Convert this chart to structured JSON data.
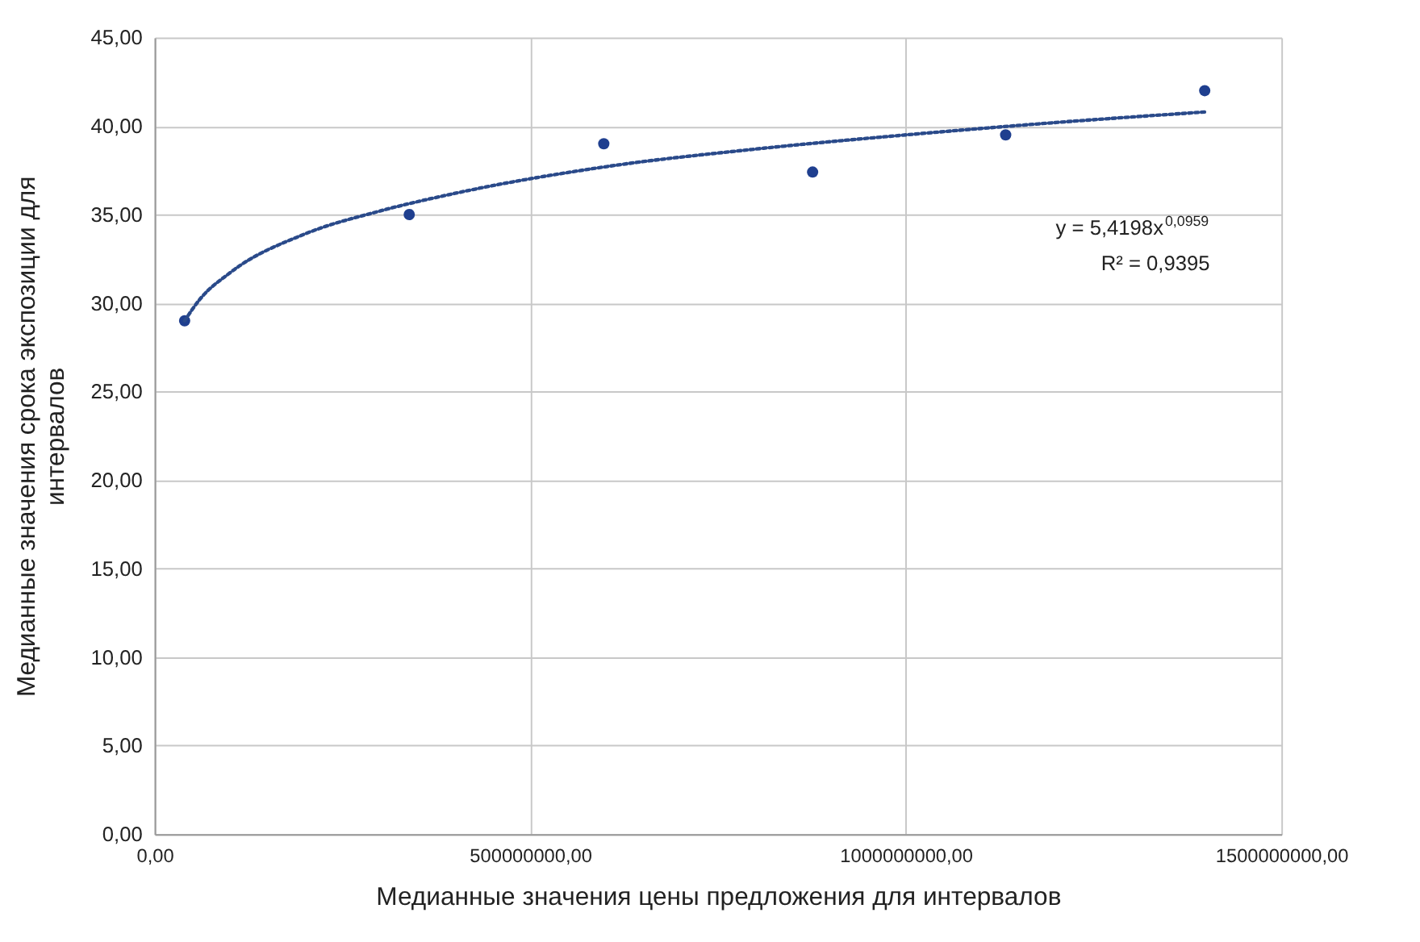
{
  "chart_data": {
    "type": "scatter",
    "xlabel": "Медианные значения цены предложения для интервалов",
    "ylabel": "Медианные значения срока экспозиции для интервалов",
    "series": [
      {
        "color": "#1f3f8f",
        "marker": "circle",
        "x": [
          40000000,
          339000000,
          598000000,
          876000000,
          1133000000,
          1398000000
        ],
        "values": [
          29.0,
          35.0,
          39.0,
          37.4,
          39.5,
          42.0
        ]
      },
      {
        "type": "line",
        "color": "#2a4a8a",
        "line_style": "dotted",
        "marker": "none",
        "x": [
          40000000,
          60000000,
          100000000,
          200000000,
          300000000,
          400000000,
          600000000,
          800000000,
          1000000000,
          1200000000,
          1400000000
        ],
        "values": [
          29.0,
          30.2,
          31.7,
          33.9,
          35.2,
          36.2,
          37.7,
          38.7,
          39.5,
          40.2,
          40.8
        ]
      }
    ],
    "annotations": [
      "y = 5,4198x$^{0,0959}$",
      "R² = 0,9395"
    ],
    "xlim": [
      0,
      1500000000
    ],
    "xticks": [
      {
        "value": 0,
        "label": "0,00"
      },
      {
        "value": 500000000,
        "label": "500000000,00"
      },
      {
        "value": 1000000000,
        "label": "1000000000,00"
      },
      {
        "value": 1500000000,
        "label": "1500000000,00"
      }
    ],
    "ylim": [
      0,
      45
    ],
    "yticks": [
      {
        "value": 0,
        "label": "0,00"
      },
      {
        "value": 5,
        "label": "5,00"
      },
      {
        "value": 10,
        "label": "10,00"
      },
      {
        "value": 15,
        "label": "15,00"
      },
      {
        "value": 20,
        "label": "20,00"
      },
      {
        "value": 25,
        "label": "25,00"
      },
      {
        "value": 30,
        "label": "30,00"
      },
      {
        "value": 35,
        "label": "35,00"
      },
      {
        "value": 40,
        "label": "40,00"
      },
      {
        "value": 45,
        "label": "45,00"
      }
    ],
    "grid": true
  }
}
